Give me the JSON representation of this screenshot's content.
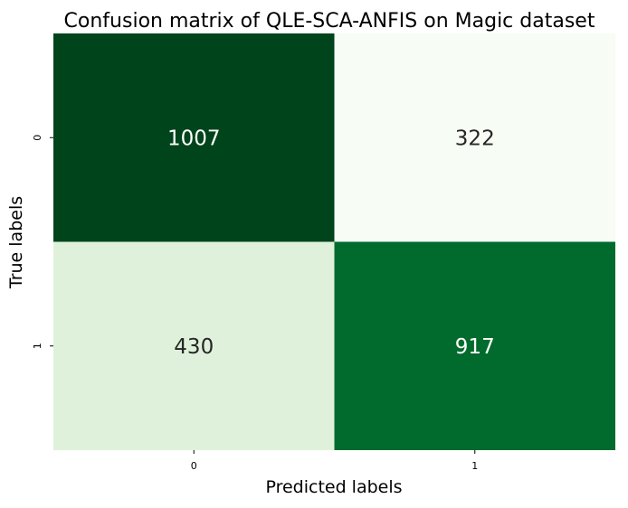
{
  "chart_data": {
    "type": "heatmap",
    "title": "Confusion matrix of QLE-SCA-ANFIS on Magic dataset",
    "xlabel": "Predicted labels",
    "ylabel": "True labels",
    "x_categories": [
      "0",
      "1"
    ],
    "y_categories": [
      "0",
      "1"
    ],
    "values": [
      [
        1007,
        322
      ],
      [
        430,
        917
      ]
    ],
    "colormap": "Greens",
    "colorbar": false,
    "grid": false,
    "cell_colors": [
      [
        "#00441b",
        "#f7fcf5"
      ],
      [
        "#dff1da",
        "#006b2c"
      ]
    ],
    "annotation_colors": [
      [
        "#ffffff",
        "#262626"
      ],
      [
        "#262626",
        "#ffffff"
      ]
    ]
  }
}
